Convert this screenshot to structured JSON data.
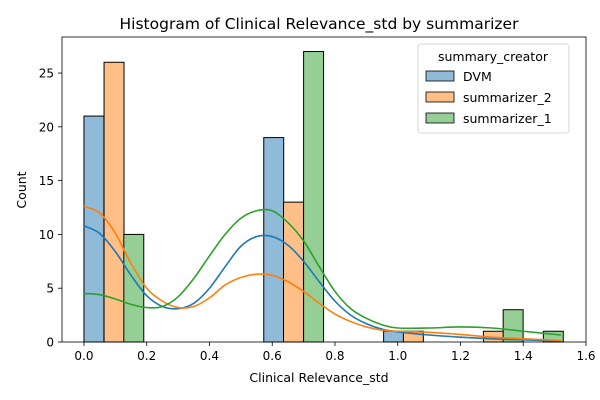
{
  "chart_data": {
    "type": "bar",
    "title": "Histogram of Clinical Relevance_std by summarizer",
    "xlabel": "Clinical Relevance_std",
    "ylabel": "Count",
    "xlim": [
      -0.07,
      1.6
    ],
    "ylim": [
      0,
      28.35
    ],
    "xticks": [
      0.0,
      0.2,
      0.4,
      0.6,
      0.8,
      1.0,
      1.2,
      1.4,
      1.6
    ],
    "xtick_labels": [
      "0.0",
      "0.2",
      "0.4",
      "0.6",
      "0.8",
      "1.0",
      "1.2",
      "1.4",
      "1.6"
    ],
    "yticks": [
      0,
      5,
      10,
      15,
      20,
      25
    ],
    "ytick_labels": [
      "0",
      "5",
      "10",
      "15",
      "20",
      "25"
    ],
    "grid": false,
    "legend": {
      "title": "summary_creator",
      "position": "top-right",
      "entries": [
        "DVM",
        "summarizer_2",
        "summarizer_1"
      ]
    },
    "bin_width": 0.0636,
    "series": [
      {
        "name": "DVM",
        "color": "#1f77b4",
        "fill": "#8fbbd9",
        "bars": [
          {
            "x": 0.0,
            "count": 21
          },
          {
            "x": 0.573,
            "count": 19
          },
          {
            "x": 0.955,
            "count": 1
          },
          {
            "x": 1.209,
            "count": 0
          },
          {
            "x": 1.464,
            "count": 0
          }
        ],
        "kde_x": [
          0.0,
          0.05,
          0.1,
          0.15,
          0.2,
          0.25,
          0.3,
          0.35,
          0.4,
          0.45,
          0.5,
          0.55,
          0.6,
          0.65,
          0.7,
          0.75,
          0.8,
          0.85,
          0.9,
          0.95,
          1.0,
          1.1,
          1.2,
          1.3,
          1.4,
          1.52
        ],
        "kde_y": [
          10.8,
          10.1,
          8.4,
          6.2,
          4.3,
          3.3,
          3.1,
          3.6,
          5.0,
          7.0,
          8.9,
          9.8,
          9.8,
          9.0,
          7.5,
          5.6,
          3.8,
          2.5,
          1.7,
          1.2,
          0.95,
          0.65,
          0.45,
          0.3,
          0.2,
          0.1
        ]
      },
      {
        "name": "summarizer_2",
        "color": "#ff7f0e",
        "fill": "#ffbf87",
        "bars": [
          {
            "x": 0.064,
            "count": 26
          },
          {
            "x": 0.636,
            "count": 13
          },
          {
            "x": 1.018,
            "count": 1
          },
          {
            "x": 1.273,
            "count": 1
          },
          {
            "x": 1.527,
            "count": 0
          }
        ],
        "kde_x": [
          0.0,
          0.05,
          0.1,
          0.15,
          0.2,
          0.25,
          0.3,
          0.35,
          0.4,
          0.45,
          0.5,
          0.55,
          0.6,
          0.65,
          0.7,
          0.75,
          0.8,
          0.85,
          0.9,
          0.95,
          1.0,
          1.1,
          1.2,
          1.3,
          1.4,
          1.52
        ],
        "kde_y": [
          12.6,
          12.0,
          10.1,
          7.3,
          5.0,
          3.8,
          3.2,
          3.3,
          4.1,
          5.3,
          6.0,
          6.3,
          6.2,
          5.6,
          4.7,
          3.6,
          2.6,
          1.9,
          1.4,
          1.1,
          1.0,
          0.9,
          0.7,
          0.45,
          0.3,
          0.15
        ]
      },
      {
        "name": "summarizer_1",
        "color": "#2ca02c",
        "fill": "#96cf96",
        "bars": [
          {
            "x": 0.127,
            "count": 10
          },
          {
            "x": 0.7,
            "count": 27
          },
          {
            "x": 1.082,
            "count": 0
          },
          {
            "x": 1.336,
            "count": 3
          },
          {
            "x": 1.464,
            "count": 1
          }
        ],
        "kde_x": [
          0.0,
          0.05,
          0.1,
          0.15,
          0.2,
          0.25,
          0.3,
          0.35,
          0.4,
          0.45,
          0.5,
          0.55,
          0.6,
          0.65,
          0.7,
          0.75,
          0.8,
          0.85,
          0.9,
          0.95,
          1.0,
          1.1,
          1.2,
          1.3,
          1.4,
          1.52
        ],
        "kde_y": [
          4.5,
          4.4,
          4.0,
          3.5,
          3.2,
          3.3,
          4.2,
          5.9,
          8.0,
          10.0,
          11.5,
          12.2,
          12.2,
          11.1,
          9.4,
          7.0,
          4.7,
          3.1,
          2.2,
          1.6,
          1.3,
          1.3,
          1.4,
          1.3,
          1.0,
          0.65
        ]
      }
    ]
  }
}
